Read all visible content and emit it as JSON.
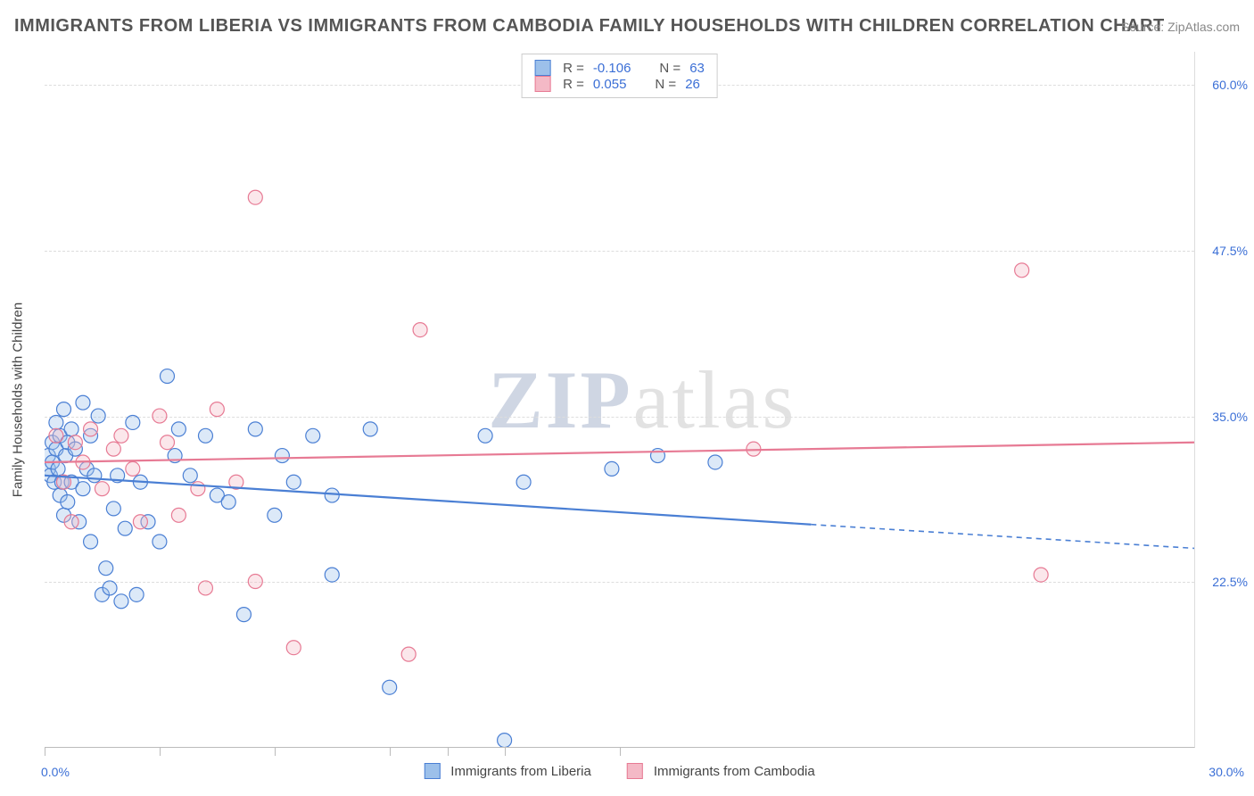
{
  "title": "IMMIGRANTS FROM LIBERIA VS IMMIGRANTS FROM CAMBODIA FAMILY HOUSEHOLDS WITH CHILDREN CORRELATION CHART",
  "source": "Source: ZipAtlas.com",
  "watermark_main": "ZIP",
  "watermark_sub": "atlas",
  "y_axis_title": "Family Households with Children",
  "axes": {
    "x_min": 0.0,
    "x_max": 30.0,
    "y_min": 10.0,
    "y_max": 62.5,
    "x_label_min": "0.0%",
    "x_label_max": "30.0%",
    "y_ticks": [
      22.5,
      35.0,
      47.5,
      60.0
    ],
    "y_tick_labels": [
      "22.5%",
      "35.0%",
      "47.5%",
      "60.0%"
    ],
    "x_tick_positions": [
      0.0,
      3.0,
      6.0,
      9.0,
      10.5,
      12.0,
      15.0
    ]
  },
  "colors": {
    "series_a_fill": "#9cc0ea",
    "series_a_stroke": "#4a7fd4",
    "series_b_fill": "#f4b9c6",
    "series_b_stroke": "#e77a94",
    "grid": "#dddddd",
    "axis": "#bbbbbb",
    "label_blue": "#3b6fd6",
    "text": "#555555",
    "wm_blue": "#cfd6e3",
    "wm_gray": "#e2e2e2",
    "background": "#ffffff"
  },
  "marker_radius": 8,
  "series": [
    {
      "name": "Immigrants from Liberia",
      "key": "a",
      "R": "-0.106",
      "N": "63",
      "trend": {
        "x1": 0.0,
        "y1": 30.5,
        "x2": 20.0,
        "y2": 26.8,
        "ext_x2": 30.0,
        "ext_y2": 25.0
      },
      "points": [
        [
          0.1,
          31.0
        ],
        [
          0.1,
          32.0
        ],
        [
          0.15,
          30.5
        ],
        [
          0.2,
          31.5
        ],
        [
          0.2,
          33.0
        ],
        [
          0.25,
          30.0
        ],
        [
          0.3,
          32.5
        ],
        [
          0.3,
          34.5
        ],
        [
          0.35,
          31.0
        ],
        [
          0.4,
          33.5
        ],
        [
          0.4,
          29.0
        ],
        [
          0.45,
          30.0
        ],
        [
          0.5,
          27.5
        ],
        [
          0.5,
          35.5
        ],
        [
          0.55,
          32.0
        ],
        [
          0.6,
          33.0
        ],
        [
          0.6,
          28.5
        ],
        [
          0.7,
          30.0
        ],
        [
          0.7,
          34.0
        ],
        [
          0.8,
          32.5
        ],
        [
          0.9,
          27.0
        ],
        [
          1.0,
          36.0
        ],
        [
          1.0,
          29.5
        ],
        [
          1.1,
          31.0
        ],
        [
          1.2,
          33.5
        ],
        [
          1.2,
          25.5
        ],
        [
          1.3,
          30.5
        ],
        [
          1.4,
          35.0
        ],
        [
          1.5,
          21.5
        ],
        [
          1.6,
          23.5
        ],
        [
          1.7,
          22.0
        ],
        [
          1.8,
          28.0
        ],
        [
          1.9,
          30.5
        ],
        [
          2.0,
          21.0
        ],
        [
          2.1,
          26.5
        ],
        [
          2.3,
          34.5
        ],
        [
          2.4,
          21.5
        ],
        [
          2.5,
          30.0
        ],
        [
          2.7,
          27.0
        ],
        [
          3.0,
          25.5
        ],
        [
          3.2,
          38.0
        ],
        [
          3.4,
          32.0
        ],
        [
          3.5,
          34.0
        ],
        [
          3.8,
          30.5
        ],
        [
          4.2,
          33.5
        ],
        [
          4.5,
          29.0
        ],
        [
          4.8,
          28.5
        ],
        [
          5.2,
          20.0
        ],
        [
          5.5,
          34.0
        ],
        [
          6.0,
          27.5
        ],
        [
          6.2,
          32.0
        ],
        [
          6.5,
          30.0
        ],
        [
          7.0,
          33.5
        ],
        [
          7.5,
          29.0
        ],
        [
          7.5,
          23.0
        ],
        [
          8.5,
          34.0
        ],
        [
          9.0,
          14.5
        ],
        [
          11.5,
          33.5
        ],
        [
          12.0,
          10.5
        ],
        [
          12.5,
          30.0
        ],
        [
          14.8,
          31.0
        ],
        [
          16.0,
          32.0
        ],
        [
          17.5,
          31.5
        ]
      ]
    },
    {
      "name": "Immigrants from Cambodia",
      "key": "b",
      "R": "0.055",
      "N": "26",
      "trend": {
        "x1": 0.0,
        "y1": 31.5,
        "x2": 30.0,
        "y2": 33.0,
        "ext_x2": 30.0,
        "ext_y2": 33.0
      },
      "points": [
        [
          0.3,
          33.5
        ],
        [
          0.5,
          30.0
        ],
        [
          0.7,
          27.0
        ],
        [
          0.8,
          33.0
        ],
        [
          1.0,
          31.5
        ],
        [
          1.2,
          34.0
        ],
        [
          1.5,
          29.5
        ],
        [
          1.8,
          32.5
        ],
        [
          2.0,
          33.5
        ],
        [
          2.3,
          31.0
        ],
        [
          2.5,
          27.0
        ],
        [
          3.0,
          35.0
        ],
        [
          3.2,
          33.0
        ],
        [
          3.5,
          27.5
        ],
        [
          4.0,
          29.5
        ],
        [
          4.2,
          22.0
        ],
        [
          4.5,
          35.5
        ],
        [
          5.0,
          30.0
        ],
        [
          5.5,
          22.5
        ],
        [
          5.5,
          51.5
        ],
        [
          6.5,
          17.5
        ],
        [
          9.5,
          17.0
        ],
        [
          9.8,
          41.5
        ],
        [
          18.5,
          32.5
        ],
        [
          25.5,
          46.0
        ],
        [
          26.0,
          23.0
        ]
      ]
    }
  ],
  "legend_top_rows": [
    {
      "series": "a",
      "R_label": "R =",
      "N_label": "N ="
    },
    {
      "series": "b",
      "R_label": "R =",
      "N_label": "N ="
    }
  ]
}
